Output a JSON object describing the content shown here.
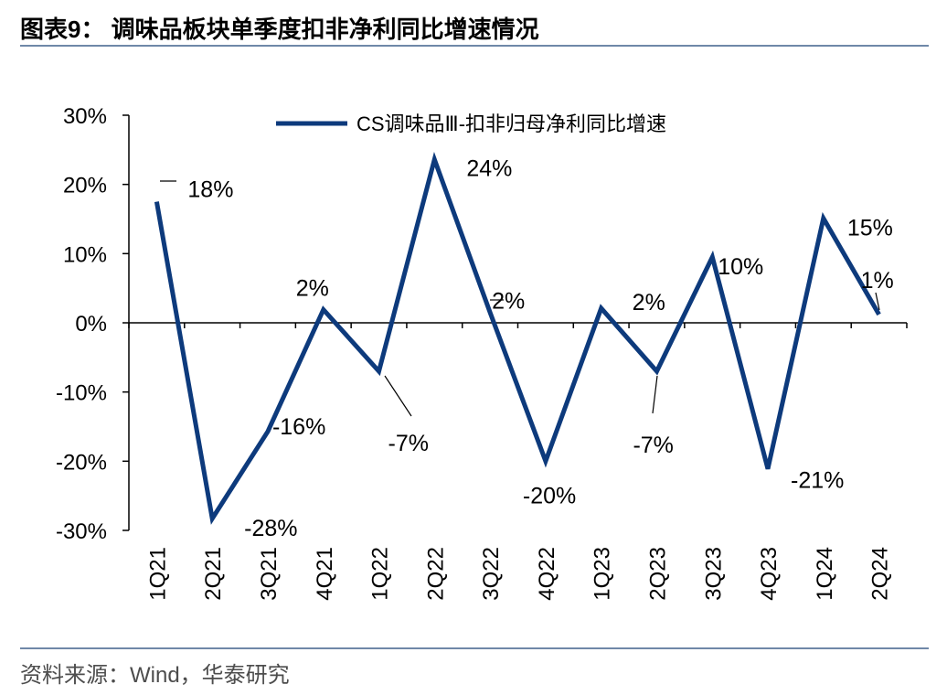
{
  "header": {
    "title": "图表9：  调味品板块单季度扣非净利同比增速情况"
  },
  "footer": {
    "source": "资料来源：Wind，华泰研究"
  },
  "colors": {
    "series": "#0d3a7c",
    "axis": "#000000",
    "rule": "#6f88a8"
  },
  "chart_data": {
    "type": "line",
    "title": "调味品板块单季度扣非净利同比增速情况",
    "categories": [
      "1Q21",
      "2Q21",
      "3Q21",
      "4Q21",
      "1Q22",
      "2Q22",
      "3Q22",
      "4Q22",
      "1Q23",
      "2Q23",
      "3Q23",
      "4Q23",
      "1Q24",
      "2Q24"
    ],
    "series": [
      {
        "name": "CS调味品Ⅲ-扣非归母净利同比增速",
        "values": [
          17.5,
          -28.3,
          -15.7,
          1.9,
          -7.0,
          23.6,
          1.5,
          -20.0,
          2.1,
          -7.0,
          9.5,
          -21.1,
          15.1,
          1.2
        ]
      }
    ],
    "data_labels": [
      "18%",
      "-28%",
      "-16%",
      "2%",
      "-7%",
      "24%",
      "2%",
      "-20%",
      "2%",
      "-7%",
      "10%",
      "-21%",
      "15%",
      "1%"
    ],
    "ylim": [
      -30,
      30
    ],
    "yticks": [
      -30,
      -20,
      -10,
      0,
      10,
      20,
      30
    ],
    "ytick_labels": [
      "-30%",
      "-20%",
      "-10%",
      "0%",
      "10%",
      "20%",
      "30%"
    ],
    "xlabel": "",
    "ylabel": "",
    "legend_position": "top"
  }
}
